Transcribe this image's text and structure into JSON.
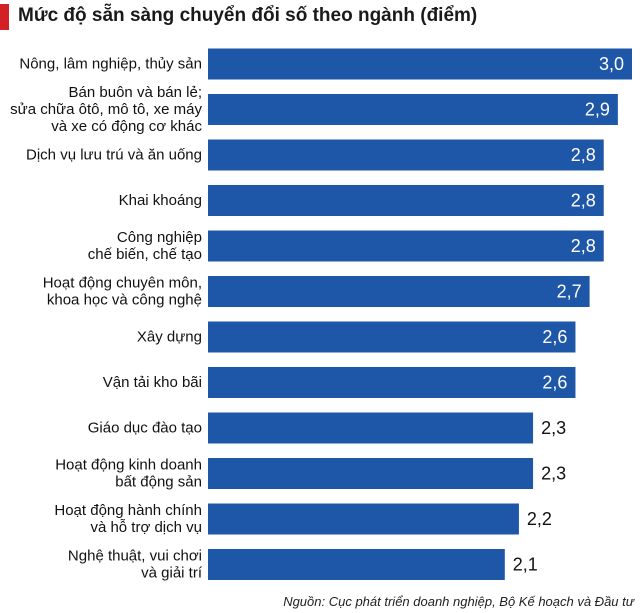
{
  "chart_data": {
    "type": "bar",
    "orientation": "horizontal",
    "title": "Mức độ sẵn sàng chuyển đổi số theo ngành (điểm)",
    "categories": [
      [
        "Nông, lâm nghiệp, thủy sản"
      ],
      [
        "Bán buôn và bán lẻ;",
        "sửa chữa ôtô, mô tô, xe máy",
        "và xe có động cơ khác"
      ],
      [
        "Dịch vụ lưu trú và ăn uống"
      ],
      [
        "Khai khoáng"
      ],
      [
        "Công nghiệp",
        "chế biến, chế tạo"
      ],
      [
        "Hoạt động chuyên môn,",
        "khoa học và công nghệ"
      ],
      [
        "Xây dựng"
      ],
      [
        "Vận tải kho bãi"
      ],
      [
        "Giáo dục đào tạo"
      ],
      [
        "Hoạt động kinh doanh",
        "bất động sản"
      ],
      [
        "Hoạt động hành chính",
        "và hỗ trợ dịch vụ"
      ],
      [
        "Nghệ thuật, vui chơi",
        "và giải trí"
      ]
    ],
    "values": [
      3.0,
      2.9,
      2.8,
      2.8,
      2.8,
      2.7,
      2.6,
      2.6,
      2.3,
      2.3,
      2.2,
      2.1
    ],
    "value_labels": [
      "3,0",
      "2,9",
      "2,8",
      "2,8",
      "2,8",
      "2,7",
      "2,6",
      "2,6",
      "2,3",
      "2,3",
      "2,2",
      "2,1"
    ],
    "xlim": [
      0,
      3.0
    ],
    "bar_color": "#1f57a8",
    "grid": false
  },
  "title_accent_color": "#d32027",
  "source": "Nguồn: Cục phát triển doanh nghiệp, Bộ Kế hoạch và Đầu tư"
}
